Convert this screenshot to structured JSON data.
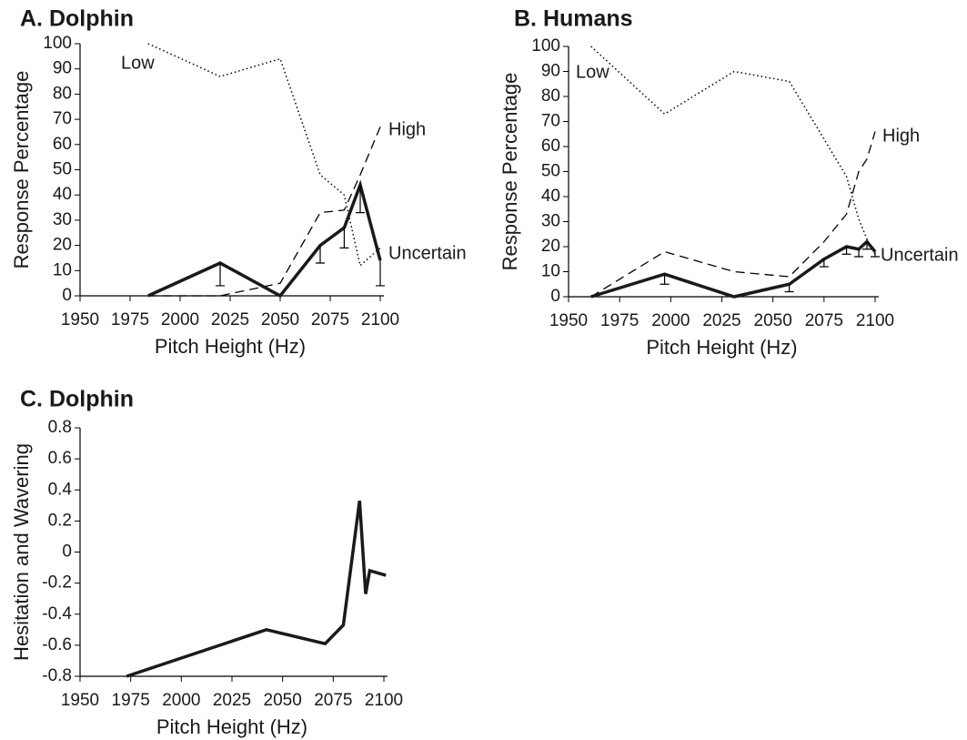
{
  "chart_data": [
    {
      "type": "line",
      "title": "A. Dolphin",
      "xlabel": "Pitch Height (Hz)",
      "ylabel": "Response Percentage",
      "x": [
        1984,
        2020,
        2050,
        2070,
        2082,
        2090,
        2100
      ],
      "series": [
        {
          "name": "Low",
          "color": "#000000",
          "style": "dotted",
          "values": [
            100,
            87,
            94,
            48,
            40,
            12,
            19
          ]
        },
        {
          "name": "High",
          "color": "#000000",
          "style": "dashed",
          "values": [
            0,
            0,
            5,
            33,
            34,
            48,
            67
          ]
        },
        {
          "name": "Uncertain",
          "color": "#1a1a1a",
          "style": "solid",
          "values": [
            0,
            13,
            0,
            20,
            27,
            44,
            14
          ],
          "errors": [
            0,
            9,
            0,
            7,
            8,
            11,
            10
          ]
        }
      ],
      "xlim": [
        1950,
        2100
      ],
      "xticks": [
        1950,
        1975,
        2000,
        2025,
        2050,
        2075,
        2100
      ],
      "ylim": [
        0,
        100
      ],
      "yticks": [
        0,
        10,
        20,
        30,
        40,
        50,
        60,
        70,
        80,
        90,
        100
      ],
      "grid": false
    },
    {
      "type": "line",
      "title": "B. Humans",
      "xlabel": "Pitch Height (Hz)",
      "ylabel": "Response Percentage",
      "x": [
        1961,
        1997,
        2031,
        2058,
        2075,
        2086,
        2092,
        2096,
        2100
      ],
      "series": [
        {
          "name": "Low",
          "color": "#000000",
          "style": "dotted",
          "values": [
            100,
            73,
            90,
            86,
            63,
            48,
            31,
            23,
            17
          ]
        },
        {
          "name": "High",
          "color": "#000000",
          "style": "dashed",
          "values": [
            0,
            18,
            10,
            8,
            22,
            33,
            50,
            55,
            66
          ]
        },
        {
          "name": "Uncertain",
          "color": "#1a1a1a",
          "style": "solid",
          "values": [
            0,
            9,
            0,
            5,
            15,
            20,
            19,
            22,
            18
          ],
          "errors": [
            0,
            4,
            0,
            3,
            3,
            3,
            3,
            3,
            2
          ]
        }
      ],
      "xlim": [
        1950,
        2100
      ],
      "xticks": [
        1950,
        1975,
        2000,
        2025,
        2050,
        2075,
        2100
      ],
      "ylim": [
        0,
        100
      ],
      "yticks": [
        0,
        10,
        20,
        30,
        40,
        50,
        60,
        70,
        80,
        90,
        100
      ],
      "grid": false
    },
    {
      "type": "line",
      "title": "C. Dolphin",
      "xlabel": "Pitch Height (Hz)",
      "ylabel": "Hesitation and Wavering",
      "x": [
        1973,
        2042,
        2071,
        2080,
        2088,
        2091,
        2093,
        2101
      ],
      "series": [
        {
          "color": "#1a1a1a",
          "style": "solid",
          "values": [
            -0.8,
            -0.5,
            -0.59,
            -0.47,
            0.33,
            -0.27,
            -0.12,
            -0.15
          ]
        }
      ],
      "xlim": [
        1950,
        2100
      ],
      "xticks": [
        1950,
        1975,
        2000,
        2025,
        2050,
        2075,
        2100
      ],
      "ylim": [
        -0.8,
        0.8
      ],
      "yticks": [
        -0.8,
        -0.6,
        -0.4,
        -0.2,
        0,
        0.2,
        0.4,
        0.6,
        0.8
      ],
      "grid": false
    }
  ]
}
